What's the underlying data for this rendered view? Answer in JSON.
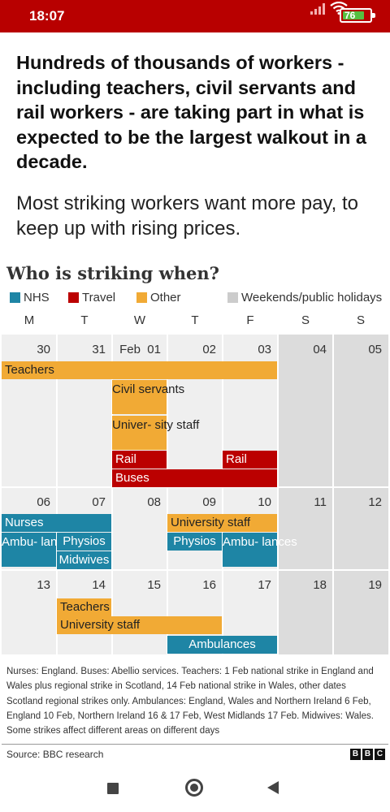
{
  "status_bar": {
    "time": "18:07",
    "battery": "76"
  },
  "article": {
    "headline": "Hundreds of thousands of workers - including teachers, civil servants and rail workers - are taking part in what is expected to be the largest walkout in a decade.",
    "paragraph": "Most striking workers want more pay, to keep up with rising prices."
  },
  "graphic": {
    "title": "Who is striking when?",
    "legend": [
      {
        "label": "NHS",
        "color": "#1e85a5"
      },
      {
        "label": "Travel",
        "color": "#bb0000"
      },
      {
        "label": "Other",
        "color": "#f1aa35"
      },
      {
        "label": "Weekends/public holidays",
        "color": "#cccccc"
      }
    ],
    "days_of_week": [
      "M",
      "T",
      "W",
      "T",
      "F",
      "S",
      "S"
    ],
    "weeks": [
      [
        "30",
        "31",
        "Feb  01",
        "02",
        "03",
        "04",
        "05"
      ],
      [
        "06",
        "07",
        "08",
        "09",
        "10",
        "11",
        "12"
      ],
      [
        "13",
        "14",
        "15",
        "16",
        "17",
        "18",
        "19"
      ]
    ],
    "bars": {
      "teachers_w1": "Teachers",
      "civil_servants": "Civil servants",
      "university_staff_w1": "Univer- sity staff",
      "rail_wed": "Rail",
      "rail_fri": "Rail",
      "buses": "Buses",
      "nurses": "Nurses",
      "ambulances_mon": "Ambu- lances",
      "physios_tue": "Physios",
      "midwives": "Midwives",
      "university_staff_w2": "University staff",
      "physios_thu": "Physios",
      "ambulances_fri": "Ambu- lances",
      "teachers_w3": "Teachers",
      "university_staff_w3": "University staff",
      "ambulances_w3": "Ambulances"
    },
    "note": "Nurses: England. Buses: Abellio services. Teachers: 1 Feb national strike in England and Wales plus regional strike in Scotland, 14 Feb national strike in Wales, other dates Scotland regional strikes only. Ambulances: England, Wales and Northern Ireland 6 Feb, England 10 Feb, Northern Ireland 16 & 17 Feb, West Midlands 17 Feb. Midwives: Wales. Some strikes affect different areas on different days",
    "source": "Source: BBC research",
    "logo_letters": [
      "B",
      "B",
      "C"
    ]
  }
}
